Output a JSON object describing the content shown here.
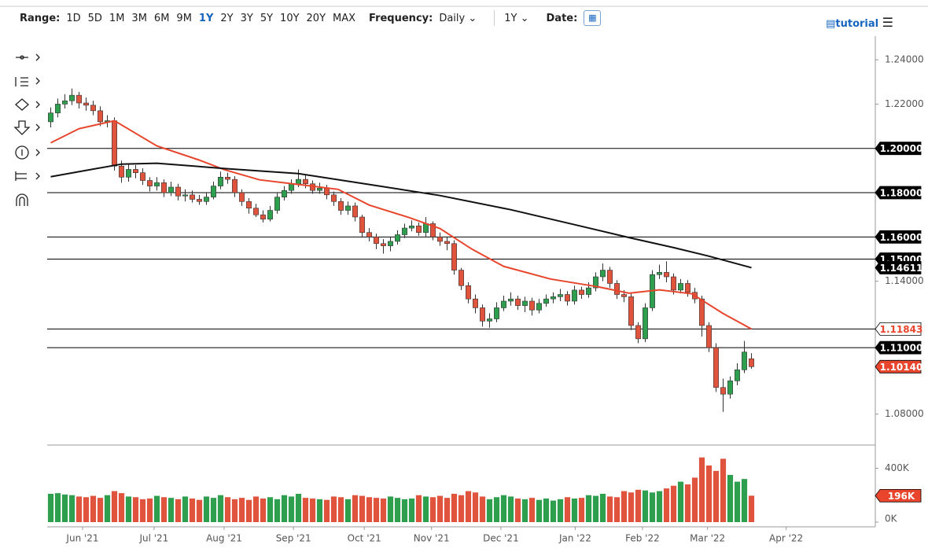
{
  "toolbar": {
    "range_label": "Range:",
    "ranges": [
      "1D",
      "5D",
      "1M",
      "3M",
      "6M",
      "9M",
      "1Y",
      "2Y",
      "3Y",
      "5Y",
      "10Y",
      "20Y",
      "MAX"
    ],
    "active_range": "1Y",
    "frequency_label": "Frequency:",
    "frequency": "Daily",
    "period": "1Y",
    "date_label": "Date:",
    "tutorial": "tutorial"
  },
  "chart_data": {
    "type": "candlestick",
    "up_color": "#2e9e4f",
    "down_color": "#e0533d",
    "xlim": [
      -0.5,
      116.5
    ],
    "xticks": [
      {
        "value": 4.5,
        "label": "Jun '21"
      },
      {
        "value": 14.6,
        "label": "Jul '21"
      },
      {
        "value": 24.5,
        "label": "Aug '21"
      },
      {
        "value": 34.3,
        "label": "Sep '21"
      },
      {
        "value": 44.3,
        "label": "Oct '21"
      },
      {
        "value": 53.8,
        "label": "Nov '21"
      },
      {
        "value": 63.6,
        "label": "Dec '21"
      },
      {
        "value": 74.1,
        "label": "Jan '22"
      },
      {
        "value": 83.6,
        "label": "Feb '22"
      },
      {
        "value": 92.8,
        "label": "Mar '22"
      },
      {
        "value": 103.9,
        "label": "Apr '22"
      }
    ],
    "ylim": [
      1.066,
      1.245
    ],
    "yticks": [
      {
        "value": 1.24,
        "label": "1.24000"
      },
      {
        "value": 1.22,
        "label": "1.22000"
      },
      {
        "value": 1.14,
        "label": "1.14000"
      },
      {
        "value": 1.08,
        "label": "1.08000"
      }
    ],
    "open": [
      1.212,
      1.216,
      1.22,
      1.2215,
      1.224,
      1.2205,
      1.2195,
      1.217,
      1.212,
      1.2125,
      1.192,
      1.187,
      1.1905,
      1.189,
      1.1855,
      1.183,
      1.1845,
      1.18,
      1.1825,
      1.1785,
      1.179,
      1.177,
      1.176,
      1.178,
      1.183,
      1.187,
      1.186,
      1.18,
      1.176,
      1.173,
      1.17,
      1.168,
      1.172,
      1.178,
      1.181,
      1.184,
      1.186,
      1.184,
      1.181,
      1.182,
      1.179,
      1.176,
      1.172,
      1.174,
      1.169,
      1.162,
      1.16,
      1.157,
      1.156,
      1.158,
      1.161,
      1.164,
      1.165,
      1.162,
      1.166,
      1.16,
      1.158,
      1.157,
      1.145,
      1.138,
      1.132,
      1.128,
      1.122,
      1.123,
      1.128,
      1.131,
      1.132,
      1.129,
      1.131,
      1.127,
      1.13,
      1.132,
      1.133,
      1.134,
      1.131,
      1.136,
      1.134,
      1.137,
      1.142,
      1.145,
      1.139,
      1.134,
      1.133,
      1.12,
      1.114,
      1.128,
      1.143,
      1.144,
      1.142,
      1.136,
      1.139,
      1.135,
      1.132,
      1.12,
      1.11,
      1.092,
      1.089,
      1.095,
      1.1,
      1.105
    ],
    "high": [
      1.2185,
      1.2225,
      1.2245,
      1.227,
      1.2255,
      1.223,
      1.2215,
      1.219,
      1.215,
      1.214,
      1.1945,
      1.193,
      1.1925,
      1.191,
      1.187,
      1.187,
      1.186,
      1.185,
      1.184,
      1.1815,
      1.181,
      1.179,
      1.18,
      1.185,
      1.1895,
      1.189,
      1.1875,
      1.1815,
      1.1775,
      1.175,
      1.172,
      1.174,
      1.18,
      1.183,
      1.186,
      1.1905,
      1.188,
      1.1855,
      1.1845,
      1.1835,
      1.1805,
      1.1775,
      1.176,
      1.1755,
      1.17,
      1.164,
      1.1615,
      1.159,
      1.16,
      1.163,
      1.166,
      1.1675,
      1.1665,
      1.169,
      1.167,
      1.162,
      1.16,
      1.1585,
      1.146,
      1.1395,
      1.134,
      1.1295,
      1.1255,
      1.1305,
      1.1335,
      1.135,
      1.1335,
      1.133,
      1.1325,
      1.132,
      1.134,
      1.135,
      1.1365,
      1.1355,
      1.138,
      1.1375,
      1.1395,
      1.144,
      1.148,
      1.1465,
      1.1405,
      1.136,
      1.1345,
      1.1215,
      1.13,
      1.145,
      1.1475,
      1.149,
      1.1435,
      1.141,
      1.1405,
      1.137,
      1.1335,
      1.1215,
      1.112,
      1.096,
      1.097,
      1.103,
      1.113,
      1.1075
    ],
    "low": [
      1.2095,
      1.214,
      1.218,
      1.2195,
      1.218,
      1.217,
      1.215,
      1.21,
      1.2095,
      1.19,
      1.1845,
      1.185,
      1.1865,
      1.1835,
      1.1805,
      1.181,
      1.178,
      1.1785,
      1.1765,
      1.176,
      1.1755,
      1.1745,
      1.1745,
      1.177,
      1.1815,
      1.184,
      1.178,
      1.174,
      1.1705,
      1.169,
      1.1665,
      1.167,
      1.1705,
      1.1765,
      1.1795,
      1.1825,
      1.182,
      1.1795,
      1.1795,
      1.177,
      1.174,
      1.17,
      1.17,
      1.167,
      1.16,
      1.158,
      1.1545,
      1.1525,
      1.1535,
      1.1565,
      1.1595,
      1.1625,
      1.1605,
      1.16,
      1.1585,
      1.156,
      1.154,
      1.143,
      1.136,
      1.13,
      1.1255,
      1.1195,
      1.119,
      1.1215,
      1.1265,
      1.129,
      1.127,
      1.126,
      1.1245,
      1.1255,
      1.1285,
      1.13,
      1.131,
      1.129,
      1.1295,
      1.132,
      1.1325,
      1.1355,
      1.14,
      1.137,
      1.132,
      1.1305,
      1.118,
      1.112,
      1.1125,
      1.1265,
      1.141,
      1.1395,
      1.134,
      1.1345,
      1.133,
      1.13,
      1.115,
      1.108,
      1.09,
      1.081,
      1.087,
      1.093,
      1.0985,
      1.1005
    ],
    "close": [
      1.216,
      1.22,
      1.2215,
      1.224,
      1.2205,
      1.2195,
      1.217,
      1.212,
      1.2125,
      1.192,
      1.187,
      1.1905,
      1.189,
      1.1855,
      1.183,
      1.1845,
      1.18,
      1.1825,
      1.1785,
      1.179,
      1.177,
      1.176,
      1.178,
      1.183,
      1.187,
      1.186,
      1.18,
      1.176,
      1.173,
      1.17,
      1.168,
      1.172,
      1.178,
      1.181,
      1.184,
      1.186,
      1.184,
      1.181,
      1.182,
      1.179,
      1.176,
      1.172,
      1.174,
      1.169,
      1.162,
      1.16,
      1.157,
      1.156,
      1.158,
      1.161,
      1.164,
      1.165,
      1.162,
      1.166,
      1.16,
      1.158,
      1.157,
      1.145,
      1.138,
      1.132,
      1.128,
      1.122,
      1.123,
      1.128,
      1.131,
      1.132,
      1.129,
      1.131,
      1.127,
      1.13,
      1.132,
      1.133,
      1.134,
      1.131,
      1.136,
      1.134,
      1.137,
      1.142,
      1.145,
      1.139,
      1.134,
      1.133,
      1.12,
      1.114,
      1.128,
      1.143,
      1.144,
      1.142,
      1.136,
      1.139,
      1.135,
      1.132,
      1.12,
      1.11,
      1.092,
      1.089,
      1.095,
      1.1,
      1.108,
      1.1014
    ],
    "ma50": {
      "color": "#e8452c",
      "x": [
        0,
        4,
        9,
        15,
        21,
        24.5,
        29.5,
        35,
        40.6,
        45,
        50.6,
        55,
        59.5,
        64,
        70.6,
        77.3,
        81.7,
        86,
        90.6,
        95,
        99
      ],
      "values": [
        1.2025,
        1.2089,
        1.2125,
        1.2011,
        1.1947,
        1.1904,
        1.1858,
        1.1837,
        1.1815,
        1.1744,
        1.1688,
        1.1638,
        1.1545,
        1.1467,
        1.141,
        1.1375,
        1.1346,
        1.1361,
        1.1343,
        1.1254,
        1.11843
      ]
    },
    "ma200": {
      "color": "#111111",
      "x": [
        0,
        10,
        15,
        25,
        35,
        45,
        55,
        65,
        75,
        82,
        88,
        93,
        99
      ],
      "values": [
        1.1872,
        1.1929,
        1.1933,
        1.1908,
        1.1886,
        1.1837,
        1.1787,
        1.1723,
        1.1648,
        1.1595,
        1.1552,
        1.1513,
        1.14611
      ],
      "end_label": "1.14611"
    },
    "levels": [
      {
        "value": 1.2,
        "label": "1.20000"
      },
      {
        "value": 1.18,
        "label": "1.18000"
      },
      {
        "value": 1.16,
        "label": "1.16000"
      },
      {
        "value": 1.15,
        "label": "1.15000"
      },
      {
        "value": 1.11843,
        "label": "1.11843",
        "label_color": "#e8452c"
      },
      {
        "value": 1.11,
        "label": "1.11000"
      }
    ],
    "last_price": {
      "value": 1.1014,
      "label": "1.10140",
      "color": "#e8452c"
    },
    "volume": {
      "ylim": [
        0,
        560000
      ],
      "yticks": [
        {
          "value": 400000,
          "label": "400K"
        },
        {
          "value": 0,
          "label": "0K"
        }
      ],
      "values": [
        210000,
        215000,
        205000,
        200000,
        190000,
        185000,
        195000,
        180000,
        200000,
        230000,
        215000,
        190000,
        185000,
        170000,
        175000,
        195000,
        185000,
        180000,
        170000,
        190000,
        175000,
        165000,
        190000,
        180000,
        200000,
        185000,
        170000,
        180000,
        165000,
        190000,
        175000,
        185000,
        170000,
        200000,
        190000,
        210000,
        180000,
        175000,
        170000,
        165000,
        190000,
        185000,
        170000,
        200000,
        195000,
        185000,
        180000,
        175000,
        190000,
        180000,
        170000,
        175000,
        200000,
        190000,
        185000,
        195000,
        180000,
        210000,
        200000,
        230000,
        220000,
        190000,
        170000,
        185000,
        200000,
        190000,
        175000,
        170000,
        180000,
        165000,
        175000,
        160000,
        170000,
        185000,
        175000,
        180000,
        200000,
        195000,
        210000,
        190000,
        185000,
        230000,
        220000,
        240000,
        235000,
        220000,
        230000,
        250000,
        270000,
        300000,
        280000,
        330000,
        480000,
        420000,
        380000,
        470000,
        350000,
        300000,
        320000,
        196000
      ],
      "last_label": {
        "value": 196000,
        "label": "196K",
        "color": "#e8452c"
      }
    }
  }
}
